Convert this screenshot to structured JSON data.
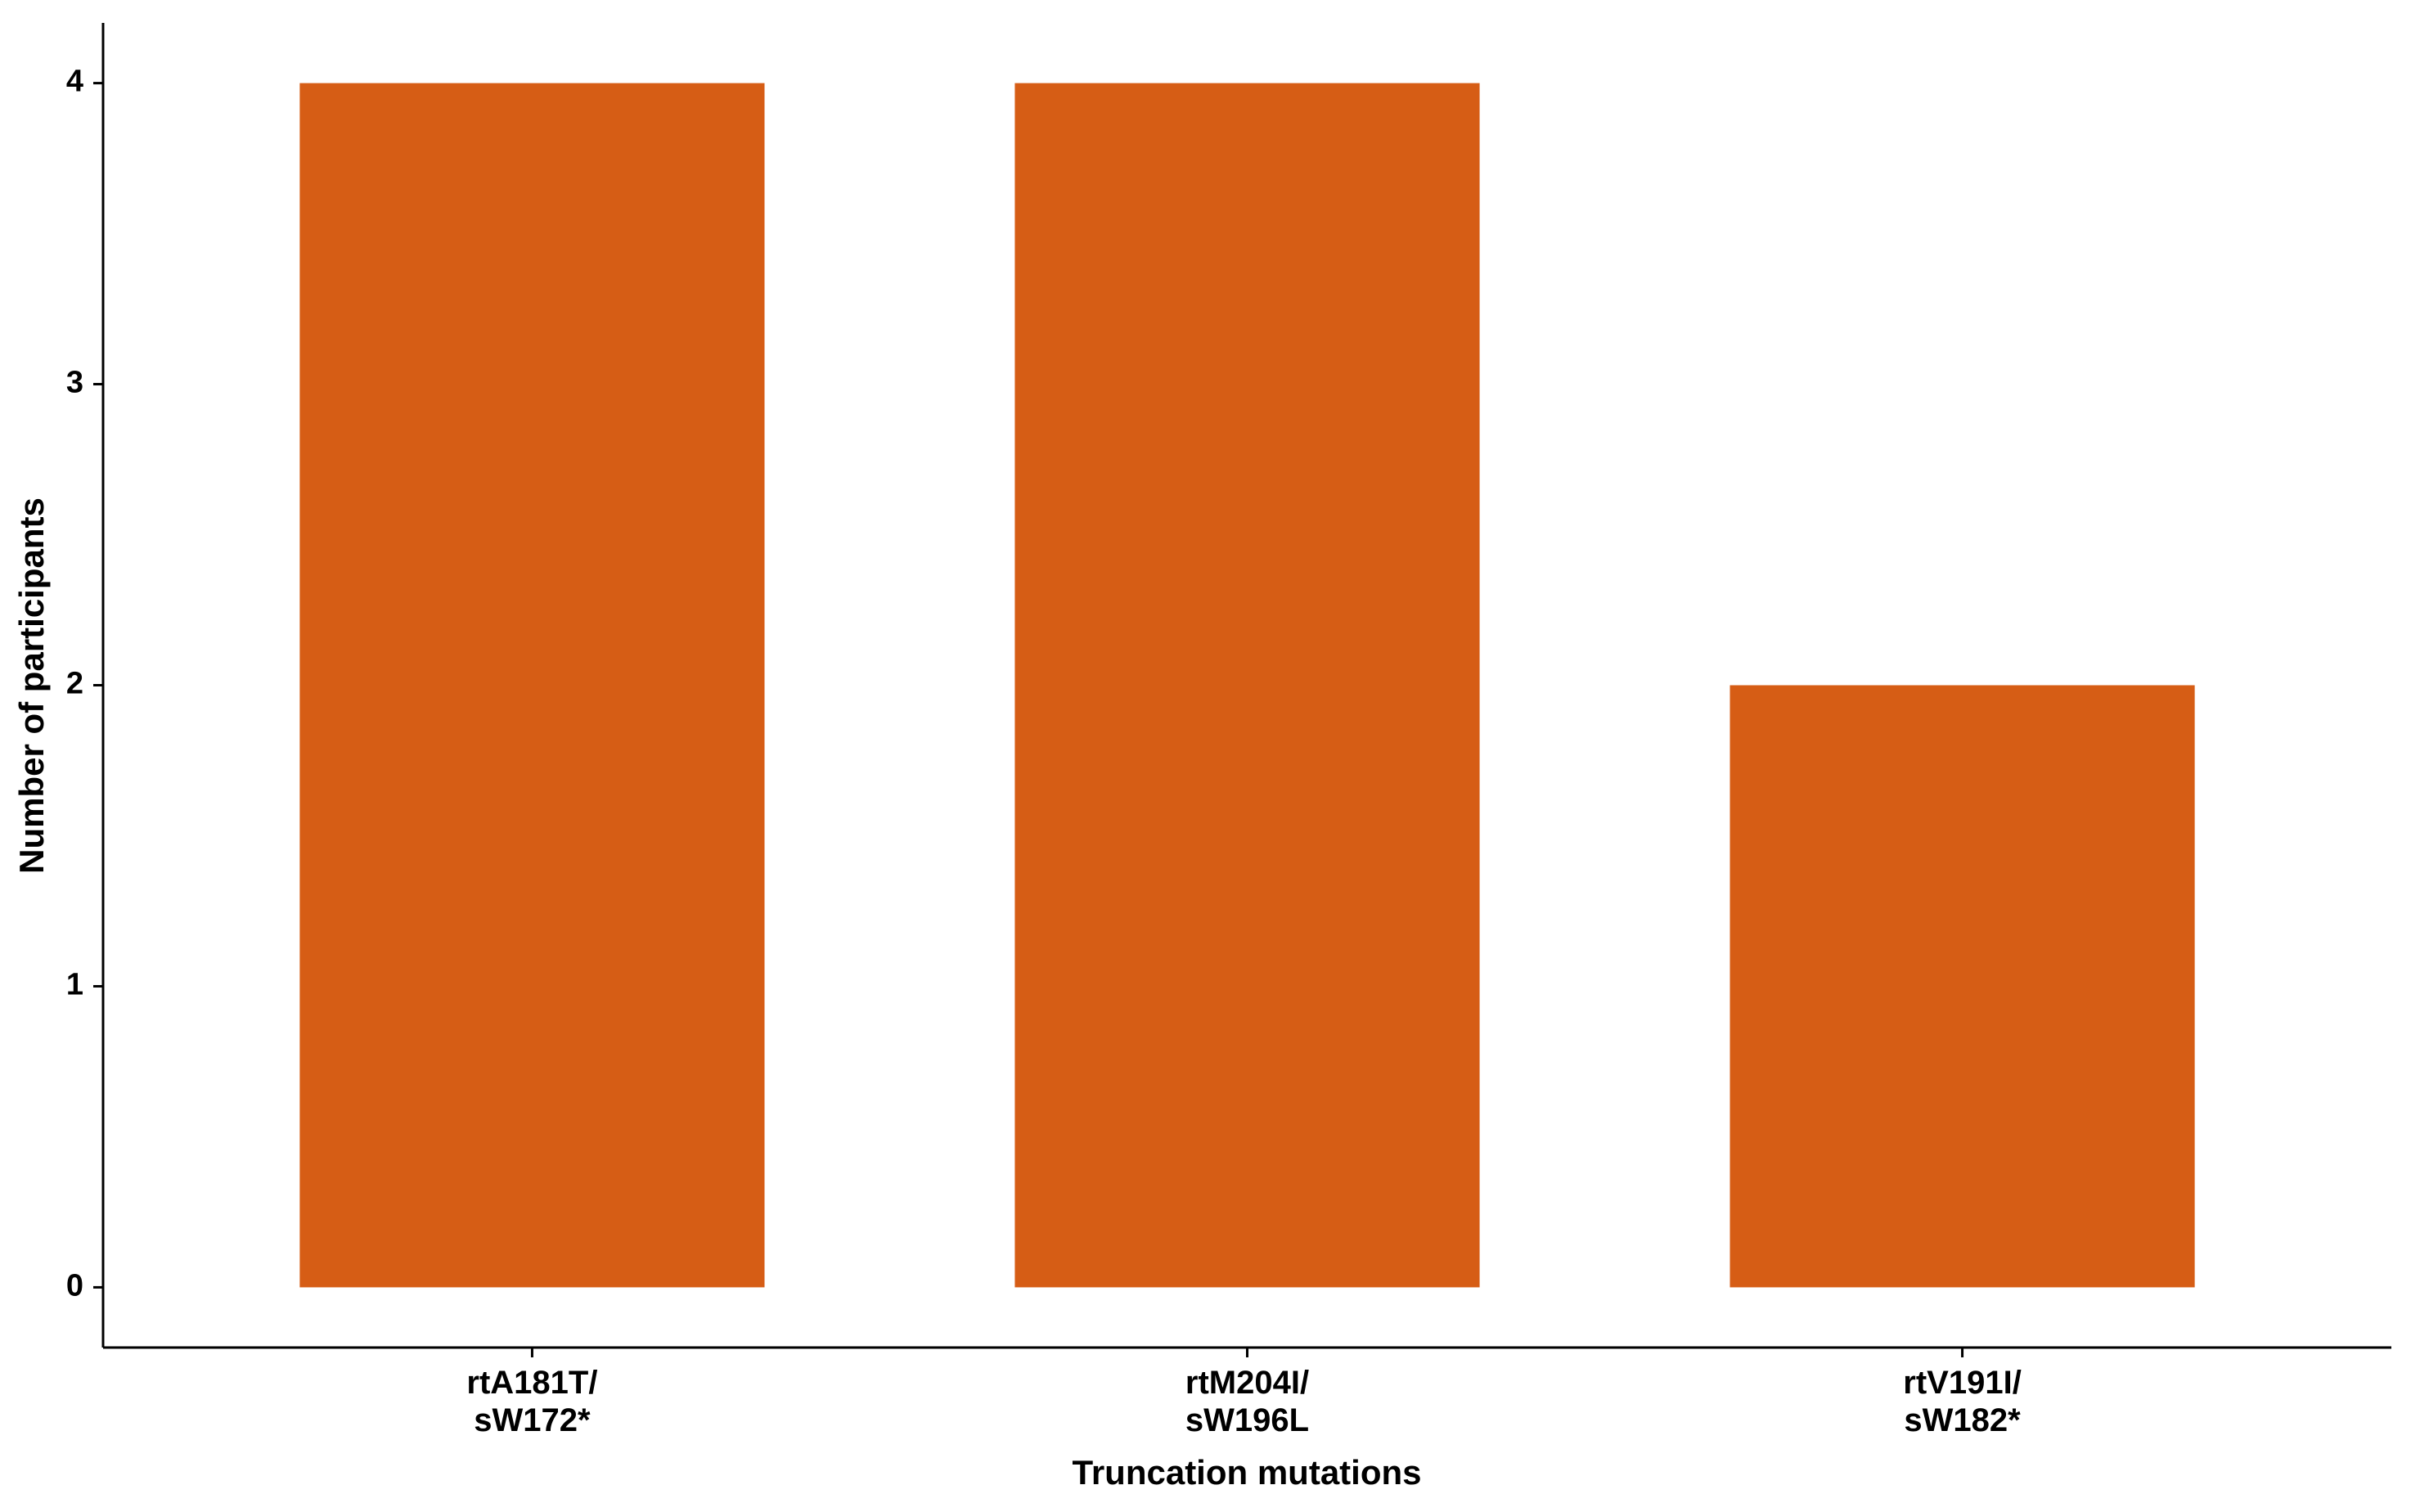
{
  "chart_data": {
    "type": "bar",
    "x_label": "Truncation mutations",
    "y_label": "Number of participants",
    "categories": [
      "rtA181T/\nsW172*",
      "rtM204I/\nsW196L",
      "rtV191I/\nsW182*"
    ],
    "values": [
      4,
      4,
      2
    ],
    "color": "#d65d15",
    "ylim": [
      -0.2,
      4.2
    ],
    "yticks": [
      0,
      1,
      2,
      3,
      4
    ],
    "grid": false
  }
}
